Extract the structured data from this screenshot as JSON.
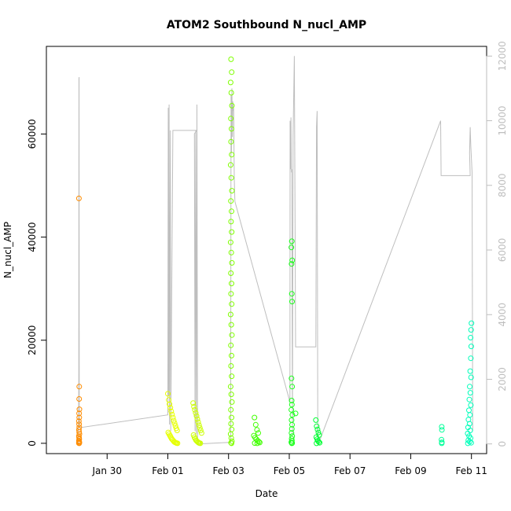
{
  "chart_data": {
    "type": "scatter",
    "title": "ATOM2 Southbound N_nucl_AMP",
    "xlabel": "Date",
    "ylabel": "N_nucl_AMP",
    "xlim": [
      "2023-01-28T00:00",
      "2023-02-11T12:00"
    ],
    "ylim": [
      -2000,
      77000
    ],
    "y2lim": [
      -300,
      12300
    ],
    "x_ticks": [
      {
        "label": "Jan 30",
        "value": "2023-01-30T00:00"
      },
      {
        "label": "Feb 01",
        "value": "2023-02-01T00:00"
      },
      {
        "label": "Feb 03",
        "value": "2023-02-03T00:00"
      },
      {
        "label": "Feb 05",
        "value": "2023-02-05T00:00"
      },
      {
        "label": "Feb 07",
        "value": "2023-02-07T00:00"
      },
      {
        "label": "Feb 09",
        "value": "2023-02-09T00:00"
      },
      {
        "label": "Feb 11",
        "value": "2023-02-11T00:00"
      }
    ],
    "y_ticks": [
      0,
      20000,
      40000,
      60000
    ],
    "y2_ticks": [
      0,
      2000,
      4000,
      6000,
      8000,
      10000,
      12000
    ],
    "grid": false,
    "colors": {
      "jan29": "#ff8c00",
      "feb01": "#e6ff00",
      "feb02": "#ccff00",
      "feb03": "#7fff00",
      "feb04": "#40ff00",
      "feb05": "#19ff19",
      "feb06": "#00ff33",
      "feb10": "#00ff99",
      "feb11": "#00ffbb",
      "secondary_line": "#bebebe"
    },
    "series": [
      {
        "color_key": "jan29",
        "points": [
          [
            "2023-01-29T01:45",
            47500
          ],
          [
            "2023-01-29T02:00",
            11000
          ],
          [
            "2023-01-29T01:55",
            8600
          ],
          [
            "2023-01-29T02:05",
            6600
          ],
          [
            "2023-01-29T01:50",
            5800
          ],
          [
            "2023-01-29T02:00",
            5000
          ],
          [
            "2023-01-29T01:40",
            4300
          ],
          [
            "2023-01-29T01:50",
            3700
          ],
          [
            "2023-01-29T02:00",
            3100
          ],
          [
            "2023-01-29T01:45",
            2600
          ],
          [
            "2023-01-29T01:55",
            2200
          ],
          [
            "2023-01-29T02:05",
            1800
          ],
          [
            "2023-01-29T01:40",
            1400
          ],
          [
            "2023-01-29T01:50",
            1100
          ],
          [
            "2023-01-29T02:00",
            800
          ],
          [
            "2023-01-29T01:45",
            500
          ],
          [
            "2023-01-29T01:55",
            300
          ],
          [
            "2023-01-29T02:05",
            150
          ],
          [
            "2023-01-29T01:40",
            50
          ],
          [
            "2023-01-29T02:00",
            0
          ]
        ]
      },
      {
        "color_key": "feb01",
        "points": [
          [
            "2023-02-01T00:00",
            9600
          ],
          [
            "2023-02-01T00:40",
            8400
          ],
          [
            "2023-02-01T01:20",
            7600
          ],
          [
            "2023-02-01T02:00",
            6900
          ],
          [
            "2023-02-01T02:40",
            6200
          ],
          [
            "2023-02-01T03:20",
            5600
          ],
          [
            "2023-02-01T04:00",
            5000
          ],
          [
            "2023-02-01T04:40",
            4400
          ],
          [
            "2023-02-01T05:20",
            3900
          ],
          [
            "2023-02-01T06:00",
            3400
          ],
          [
            "2023-02-01T06:40",
            2900
          ],
          [
            "2023-02-01T07:20",
            2500
          ],
          [
            "2023-02-01T00:20",
            2100
          ],
          [
            "2023-02-01T01:00",
            1800
          ],
          [
            "2023-02-01T01:40",
            1500
          ],
          [
            "2023-02-01T02:20",
            1200
          ],
          [
            "2023-02-01T03:00",
            900
          ],
          [
            "2023-02-01T03:40",
            700
          ],
          [
            "2023-02-01T04:20",
            500
          ],
          [
            "2023-02-01T05:00",
            300
          ],
          [
            "2023-02-01T05:40",
            200
          ],
          [
            "2023-02-01T06:20",
            100
          ],
          [
            "2023-02-01T07:00",
            50
          ],
          [
            "2023-02-01T07:40",
            0
          ]
        ]
      },
      {
        "color_key": "feb02",
        "points": [
          [
            "2023-02-01T20:00",
            7800
          ],
          [
            "2023-02-01T20:40",
            7100
          ],
          [
            "2023-02-01T21:20",
            6500
          ],
          [
            "2023-02-01T22:00",
            5900
          ],
          [
            "2023-02-01T22:40",
            5300
          ],
          [
            "2023-02-01T23:20",
            4700
          ],
          [
            "2023-02-02T00:00",
            4100
          ],
          [
            "2023-02-02T00:40",
            3500
          ],
          [
            "2023-02-02T01:20",
            3000
          ],
          [
            "2023-02-02T02:00",
            2500
          ],
          [
            "2023-02-02T02:40",
            2000
          ],
          [
            "2023-02-01T20:20",
            1600
          ],
          [
            "2023-02-01T21:00",
            1200
          ],
          [
            "2023-02-01T21:40",
            900
          ],
          [
            "2023-02-01T22:20",
            600
          ],
          [
            "2023-02-01T23:00",
            400
          ],
          [
            "2023-02-01T23:40",
            250
          ],
          [
            "2023-02-02T00:20",
            120
          ],
          [
            "2023-02-02T01:00",
            50
          ],
          [
            "2023-02-02T01:40",
            0
          ]
        ]
      },
      {
        "color_key": "feb03",
        "points": [
          [
            "2023-02-03T02:00",
            74500
          ],
          [
            "2023-02-03T02:30",
            72000
          ],
          [
            "2023-02-03T01:40",
            70000
          ],
          [
            "2023-02-03T02:10",
            68000
          ],
          [
            "2023-02-03T02:40",
            65500
          ],
          [
            "2023-02-03T01:50",
            63000
          ],
          [
            "2023-02-03T02:20",
            61000
          ],
          [
            "2023-02-03T02:00",
            58500
          ],
          [
            "2023-02-03T02:30",
            56000
          ],
          [
            "2023-02-03T01:40",
            54000
          ],
          [
            "2023-02-03T02:10",
            51500
          ],
          [
            "2023-02-03T02:40",
            49000
          ],
          [
            "2023-02-03T01:50",
            47000
          ],
          [
            "2023-02-03T02:20",
            45000
          ],
          [
            "2023-02-03T02:00",
            43000
          ],
          [
            "2023-02-03T02:30",
            41000
          ],
          [
            "2023-02-03T01:40",
            39000
          ],
          [
            "2023-02-03T02:10",
            37000
          ],
          [
            "2023-02-03T02:40",
            35000
          ],
          [
            "2023-02-03T01:50",
            33000
          ],
          [
            "2023-02-03T02:20",
            31000
          ],
          [
            "2023-02-03T02:00",
            29000
          ],
          [
            "2023-02-03T02:30",
            27000
          ],
          [
            "2023-02-03T01:40",
            25000
          ],
          [
            "2023-02-03T02:10",
            23000
          ],
          [
            "2023-02-03T02:40",
            21000
          ],
          [
            "2023-02-03T01:50",
            19000
          ],
          [
            "2023-02-03T02:20",
            17000
          ],
          [
            "2023-02-03T02:00",
            15000
          ],
          [
            "2023-02-03T02:30",
            13000
          ],
          [
            "2023-02-03T01:40",
            11000
          ],
          [
            "2023-02-03T02:10",
            9500
          ],
          [
            "2023-02-03T02:40",
            8000
          ],
          [
            "2023-02-03T01:50",
            6500
          ],
          [
            "2023-02-03T02:20",
            5000
          ],
          [
            "2023-02-03T02:00",
            3800
          ],
          [
            "2023-02-03T02:30",
            2700
          ],
          [
            "2023-02-03T01:40",
            1800
          ],
          [
            "2023-02-03T02:10",
            1000
          ],
          [
            "2023-02-03T02:40",
            400
          ],
          [
            "2023-02-03T02:00",
            100
          ],
          [
            "2023-02-03T02:20",
            0
          ]
        ]
      },
      {
        "color_key": "feb04",
        "points": [
          [
            "2023-02-03T20:30",
            5000
          ],
          [
            "2023-02-03T21:30",
            3600
          ],
          [
            "2023-02-03T22:30",
            2600
          ],
          [
            "2023-02-03T23:30",
            2000
          ],
          [
            "2023-02-03T20:00",
            1500
          ],
          [
            "2023-02-03T21:00",
            1100
          ],
          [
            "2023-02-03T22:00",
            800
          ],
          [
            "2023-02-03T23:00",
            500
          ],
          [
            "2023-02-04T00:00",
            300
          ],
          [
            "2023-02-04T00:40",
            150
          ],
          [
            "2023-02-03T20:40",
            50
          ],
          [
            "2023-02-03T22:40",
            0
          ]
        ]
      },
      {
        "color_key": "feb05",
        "points": [
          [
            "2023-02-05T02:00",
            39200
          ],
          [
            "2023-02-05T01:40",
            38000
          ],
          [
            "2023-02-05T02:20",
            35500
          ],
          [
            "2023-02-05T01:50",
            34800
          ],
          [
            "2023-02-05T02:00",
            29000
          ],
          [
            "2023-02-05T02:10",
            27500
          ],
          [
            "2023-02-05T01:45",
            12600
          ],
          [
            "2023-02-05T02:15",
            11000
          ],
          [
            "2023-02-05T01:55",
            8300
          ],
          [
            "2023-02-05T02:05",
            7500
          ],
          [
            "2023-02-05T01:40",
            6500
          ],
          [
            "2023-02-05T02:25",
            5500
          ],
          [
            "2023-02-05T01:50",
            4500
          ],
          [
            "2023-02-05T02:10",
            3600
          ],
          [
            "2023-02-05T02:00",
            2800
          ],
          [
            "2023-02-05T01:45",
            2000
          ],
          [
            "2023-02-05T02:20",
            1400
          ],
          [
            "2023-02-05T01:55",
            900
          ],
          [
            "2023-02-05T02:05",
            500
          ],
          [
            "2023-02-05T01:40",
            200
          ],
          [
            "2023-02-05T02:15",
            50
          ],
          [
            "2023-02-05T02:00",
            0
          ],
          [
            "2023-02-05T05:00",
            5800
          ]
        ]
      },
      {
        "color_key": "feb06",
        "points": [
          [
            "2023-02-05T21:00",
            4500
          ],
          [
            "2023-02-05T21:40",
            3300
          ],
          [
            "2023-02-05T22:20",
            2700
          ],
          [
            "2023-02-05T23:00",
            2100
          ],
          [
            "2023-02-05T23:40",
            1600
          ],
          [
            "2023-02-05T21:20",
            1200
          ],
          [
            "2023-02-05T22:00",
            800
          ],
          [
            "2023-02-05T22:40",
            500
          ],
          [
            "2023-02-05T23:20",
            250
          ],
          [
            "2023-02-06T00:00",
            100
          ],
          [
            "2023-02-05T21:30",
            0
          ]
        ]
      },
      {
        "color_key": "feb10",
        "points": [
          [
            "2023-02-10T00:30",
            3200
          ],
          [
            "2023-02-10T00:40",
            2600
          ],
          [
            "2023-02-10T00:20",
            700
          ],
          [
            "2023-02-10T00:35",
            200
          ],
          [
            "2023-02-10T00:30",
            0
          ]
        ]
      },
      {
        "color_key": "feb11",
        "points": [
          [
            "2023-02-11T00:00",
            23300
          ],
          [
            "2023-02-10T23:40",
            22000
          ],
          [
            "2023-02-10T23:20",
            20500
          ],
          [
            "2023-02-10T23:50",
            18800
          ],
          [
            "2023-02-10T23:30",
            16500
          ],
          [
            "2023-02-10T23:00",
            14000
          ],
          [
            "2023-02-10T23:40",
            12800
          ],
          [
            "2023-02-10T22:40",
            11000
          ],
          [
            "2023-02-10T23:10",
            9800
          ],
          [
            "2023-02-10T22:20",
            8500
          ],
          [
            "2023-02-10T23:30",
            7400
          ],
          [
            "2023-02-10T22:00",
            6400
          ],
          [
            "2023-02-10T22:50",
            5500
          ],
          [
            "2023-02-10T21:40",
            4600
          ],
          [
            "2023-02-10T22:30",
            3800
          ],
          [
            "2023-02-10T21:20",
            3100
          ],
          [
            "2023-02-10T23:00",
            2500
          ],
          [
            "2023-02-10T21:00",
            1900
          ],
          [
            "2023-02-10T22:10",
            1400
          ],
          [
            "2023-02-10T23:20",
            1000
          ],
          [
            "2023-02-10T21:30",
            600
          ],
          [
            "2023-02-10T22:40",
            300
          ],
          [
            "2023-02-10T23:50",
            100
          ],
          [
            "2023-02-10T21:10",
            0
          ]
        ]
      }
    ],
    "secondary_line": [
      [
        "2023-01-29T01:20",
        0
      ],
      [
        "2023-01-29T01:30",
        800
      ],
      [
        "2023-01-29T01:35",
        2000
      ],
      [
        "2023-01-29T01:40",
        7000
      ],
      [
        "2023-01-29T01:45",
        11300
      ],
      [
        "2023-01-29T01:50",
        11350
      ],
      [
        "2023-01-29T01:55",
        6000
      ],
      [
        "2023-01-29T02:00",
        1200
      ],
      [
        "2023-01-29T02:05",
        550
      ],
      [
        "2023-01-29T02:10",
        500
      ],
      [
        "2023-02-01T00:00",
        900
      ],
      [
        "2023-02-01T00:20",
        10400
      ],
      [
        "2023-02-01T00:40",
        1500
      ],
      [
        "2023-02-01T01:00",
        10500
      ],
      [
        "2023-02-01T01:20",
        600
      ],
      [
        "2023-02-01T01:40",
        6200
      ],
      [
        "2023-02-01T02:00",
        9700
      ],
      [
        "2023-02-01T02:20",
        400
      ],
      [
        "2023-02-01T04:00",
        9700
      ],
      [
        "2023-02-01T23:00",
        9700
      ],
      [
        "2023-02-01T21:00",
        9600
      ],
      [
        "2023-02-01T21:30",
        400
      ],
      [
        "2023-02-01T22:00",
        9700
      ],
      [
        "2023-02-01T22:30",
        300
      ],
      [
        "2023-02-01T23:00",
        10500
      ],
      [
        "2023-02-01T23:30",
        200
      ],
      [
        "2023-02-02T00:00",
        0
      ],
      [
        "2023-02-03T01:40",
        50
      ],
      [
        "2023-02-03T02:00",
        10800
      ],
      [
        "2023-02-03T02:20",
        9000
      ],
      [
        "2023-02-03T02:40",
        11000
      ],
      [
        "2023-02-03T03:00",
        9500
      ],
      [
        "2023-02-03T03:20",
        10600
      ],
      [
        "2023-02-03T03:40",
        10300
      ],
      [
        "2023-02-03T04:00",
        10400
      ],
      [
        "2023-02-03T04:30",
        8200
      ],
      [
        "2023-02-03T05:00",
        7500
      ],
      [
        "2023-02-05T00:30",
        1300
      ],
      [
        "2023-02-05T00:40",
        10000
      ],
      [
        "2023-02-05T01:00",
        8500
      ],
      [
        "2023-02-05T01:20",
        10100
      ],
      [
        "2023-02-05T01:40",
        8400
      ],
      [
        "2023-02-05T02:00",
        8500
      ],
      [
        "2023-02-05T02:30",
        300
      ],
      [
        "2023-02-05T03:00",
        9500
      ],
      [
        "2023-02-05T04:00",
        12000
      ],
      [
        "2023-02-05T05:00",
        3000
      ],
      [
        "2023-02-05T06:00",
        3000
      ],
      [
        "2023-02-05T21:00",
        3000
      ],
      [
        "2023-02-05T21:30",
        9800
      ],
      [
        "2023-02-05T22:00",
        10300
      ],
      [
        "2023-02-05T22:30",
        400
      ],
      [
        "2023-02-05T23:00",
        0
      ],
      [
        "2023-02-09T23:40",
        10000
      ],
      [
        "2023-02-10T00:00",
        8300
      ],
      [
        "2023-02-10T23:00",
        8300
      ],
      [
        "2023-02-10T22:30",
        9000
      ],
      [
        "2023-02-10T23:00",
        9800
      ],
      [
        "2023-02-10T23:30",
        9200
      ],
      [
        "2023-02-11T00:00",
        8800
      ],
      [
        "2023-02-11T00:30",
        8400
      ],
      [
        "2023-02-11T01:00",
        400
      ]
    ]
  }
}
